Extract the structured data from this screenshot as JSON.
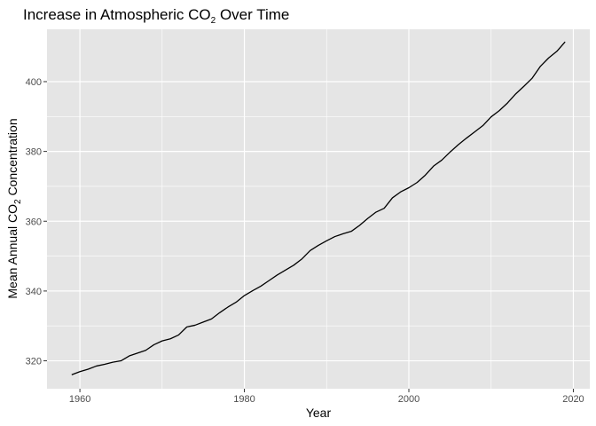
{
  "chart_data": {
    "type": "line",
    "title": {
      "prefix": "Increase in Atmospheric CO",
      "subscript": "2",
      "suffix": " Over Time"
    },
    "xlabel": "Year",
    "ylabel": {
      "prefix": "Mean Annual CO",
      "subscript": "2",
      "suffix": " Concentration"
    },
    "xlim": [
      1956,
      2022
    ],
    "ylim": [
      312,
      415
    ],
    "x_ticks": [
      1960,
      1980,
      2000,
      2020
    ],
    "x_tick_labels": [
      "1960",
      "1980",
      "2000",
      "2020"
    ],
    "y_ticks": [
      320,
      340,
      360,
      380,
      400
    ],
    "y_tick_labels": [
      "320",
      "340",
      "360",
      "380",
      "400"
    ],
    "grid": true,
    "colors": {
      "panel": "#e5e5e5",
      "grid": "#ffffff",
      "line": "#000000",
      "tick_text": "#4d4d4d"
    },
    "series": [
      {
        "x": [
          1959,
          1960,
          1961,
          1962,
          1963,
          1964,
          1965,
          1966,
          1967,
          1968,
          1969,
          1970,
          1971,
          1972,
          1973,
          1974,
          1975,
          1976,
          1977,
          1978,
          1979,
          1980,
          1981,
          1982,
          1983,
          1984,
          1985,
          1986,
          1987,
          1988,
          1989,
          1990,
          1991,
          1992,
          1993,
          1994,
          1995,
          1996,
          1997,
          1998,
          1999,
          2000,
          2001,
          2002,
          2003,
          2004,
          2005,
          2006,
          2007,
          2008,
          2009,
          2010,
          2011,
          2012,
          2013,
          2014,
          2015,
          2016,
          2017,
          2018,
          2019
        ],
        "y": [
          316.0,
          316.9,
          317.6,
          318.5,
          319.0,
          319.6,
          320.0,
          321.4,
          322.2,
          323.0,
          324.6,
          325.7,
          326.3,
          327.4,
          329.7,
          330.2,
          331.1,
          332.0,
          333.8,
          335.4,
          336.8,
          338.7,
          340.1,
          341.4,
          343.0,
          344.6,
          346.0,
          347.4,
          349.2,
          351.6,
          353.1,
          354.4,
          355.6,
          356.4,
          357.1,
          358.8,
          360.8,
          362.6,
          363.7,
          366.7,
          368.4,
          369.6,
          371.1,
          373.2,
          375.8,
          377.5,
          379.8,
          381.9,
          383.8,
          385.6,
          387.4,
          389.9,
          391.7,
          393.9,
          396.5,
          398.7,
          401.0,
          404.4,
          406.8,
          408.7,
          411.4
        ]
      }
    ]
  }
}
